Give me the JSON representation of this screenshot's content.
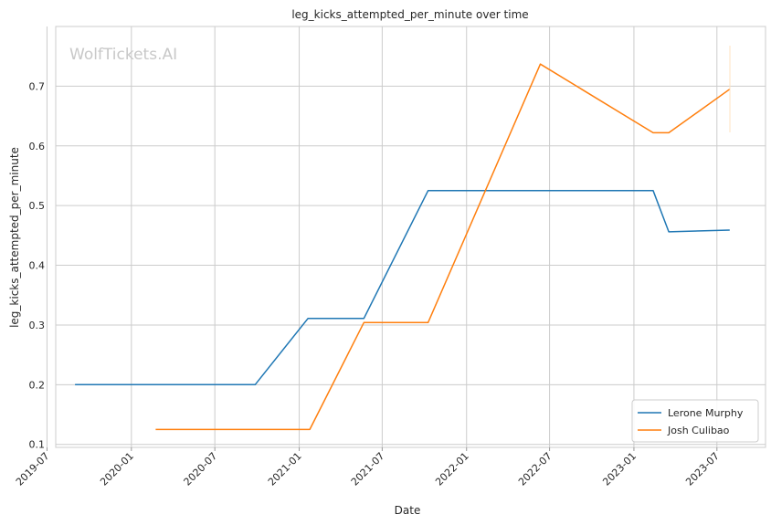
{
  "chart_data": {
    "type": "line",
    "title": "leg_kicks_attempted_per_minute over time",
    "xlabel": "Date",
    "ylabel": "leg_kicks_attempted_per_minute",
    "watermark": "WolfTickets.AI",
    "x_axis_type": "date",
    "xlim": [
      "2019-07-20",
      "2023-10-15"
    ],
    "ylim": [
      0.095,
      0.8
    ],
    "x_ticks": [
      "2019-07",
      "2020-01",
      "2020-07",
      "2021-01",
      "2021-07",
      "2022-01",
      "2022-07",
      "2023-01",
      "2023-07"
    ],
    "y_ticks": [
      0.1,
      0.2,
      0.3,
      0.4,
      0.5,
      0.6,
      0.7
    ],
    "grid": true,
    "legend_position": "bottom-right",
    "series": [
      {
        "name": "Lerone Murphy",
        "color": "#1f77b4",
        "points": [
          {
            "x": "2019-08-31",
            "y": 0.2
          },
          {
            "x": "2020-09-27",
            "y": 0.2
          },
          {
            "x": "2021-01-20",
            "y": 0.311
          },
          {
            "x": "2021-05-22",
            "y": 0.311
          },
          {
            "x": "2021-10-09",
            "y": 0.525
          },
          {
            "x": "2023-02-12",
            "y": 0.525
          },
          {
            "x": "2023-03-18",
            "y": 0.456
          },
          {
            "x": "2023-07-29",
            "y": 0.459
          }
        ]
      },
      {
        "name": "Josh Culibao",
        "color": "#ff7f0e",
        "points": [
          {
            "x": "2020-02-23",
            "y": 0.125
          },
          {
            "x": "2021-01-24",
            "y": 0.125
          },
          {
            "x": "2021-05-22",
            "y": 0.304
          },
          {
            "x": "2021-10-09",
            "y": 0.304
          },
          {
            "x": "2022-06-11",
            "y": 0.737
          },
          {
            "x": "2023-02-12",
            "y": 0.622
          },
          {
            "x": "2023-03-18",
            "y": 0.622
          },
          {
            "x": "2023-07-29",
            "y": 0.695
          }
        ]
      }
    ]
  }
}
